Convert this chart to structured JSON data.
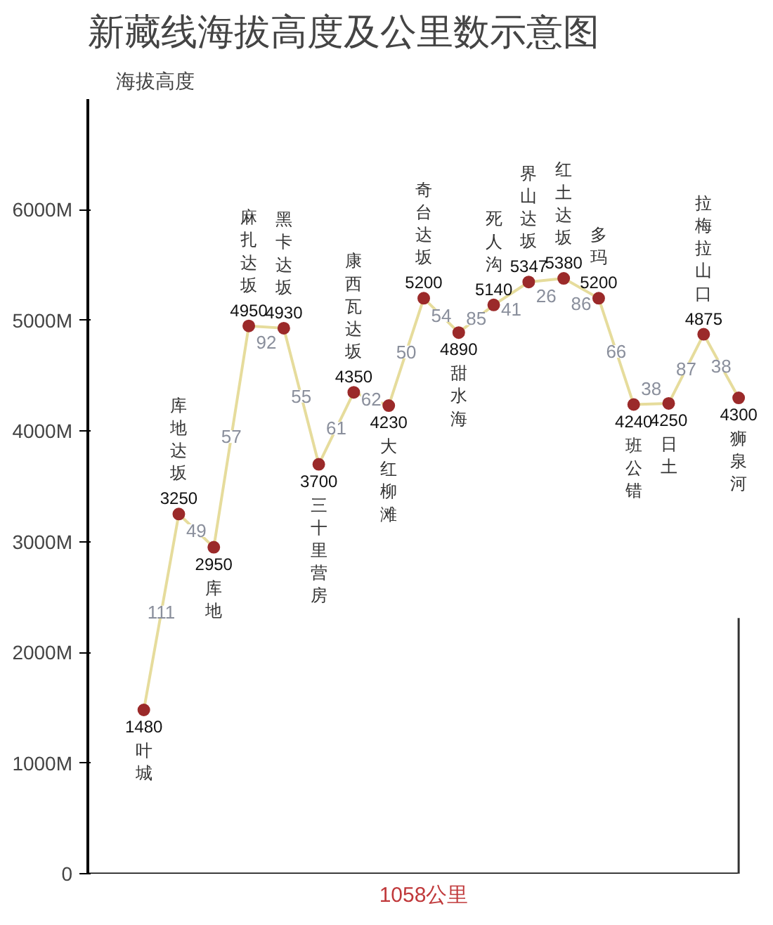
{
  "chart_data": {
    "type": "line",
    "title": "新藏线海拔高度及公里数示意图",
    "ylabel": "海拔高度",
    "categories": [
      "叶城",
      "库地达坂",
      "库地",
      "麻扎达坂",
      "黑卡达坂",
      "三十里营房",
      "康西瓦达坂",
      "大红柳滩",
      "奇台达坂",
      "甜水海",
      "死人沟",
      "界山达坂",
      "红土达坂",
      "多玛",
      "班公错",
      "日土",
      "拉梅拉山口",
      "狮泉河"
    ],
    "series": [
      {
        "color": "#e6dc9c",
        "values": [
          1480,
          3250,
          2950,
          4950,
          4930,
          3700,
          4350,
          4230,
          5200,
          4890,
          5140,
          5347,
          5380,
          5200,
          4240,
          4250,
          4875,
          4300
        ],
        "value_labels": [
          null,
          null,
          null,
          null,
          null,
          null,
          null,
          null,
          null,
          null,
          null,
          null,
          null,
          null,
          null,
          null,
          null,
          null
        ]
      },
      {
        "type": "scatter",
        "color": "#9b2a2a",
        "values": [
          1480,
          3250,
          2950,
          4950,
          4930,
          3700,
          4350,
          4230,
          5200,
          4890,
          5140,
          5347,
          5380,
          5200,
          4240,
          4250,
          4875,
          4300
        ],
        "value_labels": [
          "1480",
          "3250",
          "2950",
          "4950",
          "4930",
          "3700",
          "4350",
          "4230",
          "5200",
          "4890",
          "5140",
          "5347",
          "5380",
          "5200",
          "4240",
          "4250",
          "4875",
          "4300"
        ]
      }
    ],
    "ylim": [
      0,
      7000
    ],
    "yticks": [
      0,
      {
        "value": 1000,
        "label": "1000M"
      },
      {
        "value": 2000,
        "label": "2000M"
      },
      {
        "value": 3000,
        "label": "3000M"
      },
      {
        "value": 4000,
        "label": "4000M"
      },
      {
        "value": 5000,
        "label": "5000M"
      },
      {
        "value": 6000,
        "label": "6000M"
      }
    ],
    "tick_labels": "y",
    "grid": false,
    "annotations": [
      "111",
      "49",
      "57",
      "92",
      "55",
      "61",
      "62",
      "50",
      "54",
      "85",
      "41",
      "26",
      "86",
      "66",
      "38",
      "87",
      "38",
      "1058公里"
    ]
  }
}
